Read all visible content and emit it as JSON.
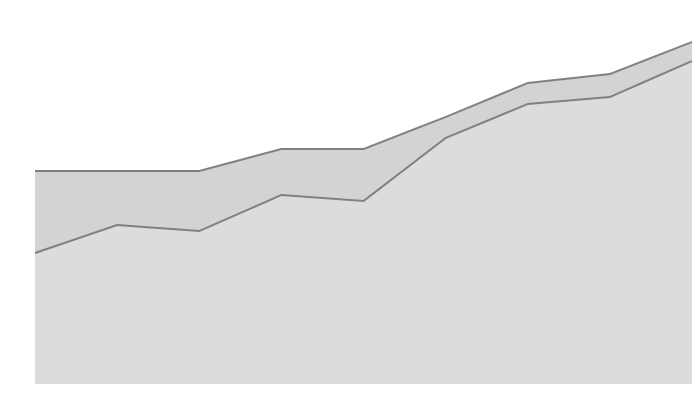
{
  "chart_data": {
    "type": "stacked-area",
    "categories": [
      null,
      null,
      null,
      null,
      null,
      null,
      null,
      null,
      null
    ],
    "series": [
      {
        "color": "#dcdcdc",
        "values": [
          131,
          159,
          153,
          189,
          183,
          246,
          280,
          287,
          323
        ]
      },
      {
        "color": "#d3d3d3",
        "values": [
          82,
          54,
          60,
          46,
          52,
          21,
          21,
          23,
          19
        ]
      }
    ],
    "line_color": "#808080",
    "ylim": [
      0,
      384
    ]
  }
}
